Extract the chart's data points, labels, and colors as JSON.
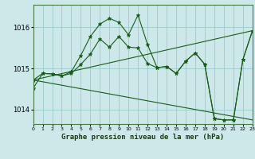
{
  "xlabel": "Graphe pression niveau de la mer (hPa)",
  "bg_color": "#cce8e8",
  "grid_color": "#99cccc",
  "line_color": "#1a5c1a",
  "marker_color": "#1a5c1a",
  "xlim": [
    0,
    23
  ],
  "ylim": [
    1013.65,
    1016.55
  ],
  "yticks": [
    1014,
    1015,
    1016
  ],
  "xticks": [
    0,
    1,
    2,
    3,
    4,
    5,
    6,
    7,
    8,
    9,
    10,
    11,
    12,
    13,
    14,
    15,
    16,
    17,
    18,
    19,
    20,
    21,
    22,
    23
  ],
  "series1_x": [
    0,
    1,
    2,
    3,
    4,
    5,
    6,
    7,
    8,
    9,
    10,
    11,
    12,
    13,
    14,
    15,
    16,
    17,
    18,
    19,
    20,
    21,
    22,
    23
  ],
  "series1_y": [
    1014.72,
    1014.88,
    1014.87,
    1014.82,
    1014.88,
    1015.1,
    1015.35,
    1015.72,
    1015.52,
    1015.78,
    1015.52,
    1015.5,
    1015.12,
    1015.02,
    1015.05,
    1014.88,
    1015.18,
    1015.38,
    1015.1,
    1013.78,
    1013.75,
    1013.75,
    1015.22,
    1015.92
  ],
  "series2_x": [
    0,
    1,
    2,
    3,
    4,
    5,
    6,
    7,
    8,
    9,
    10,
    11,
    12,
    13,
    14,
    15,
    16,
    17,
    18,
    19,
    20,
    21,
    22,
    23
  ],
  "series2_y": [
    1014.52,
    1014.88,
    1014.87,
    1014.82,
    1014.92,
    1015.32,
    1015.78,
    1016.08,
    1016.22,
    1016.12,
    1015.82,
    1016.3,
    1015.58,
    1015.02,
    1015.05,
    1014.88,
    1015.18,
    1015.38,
    1015.1,
    1013.78,
    1013.75,
    1013.75,
    1015.22,
    1015.92
  ],
  "series3_x": [
    0,
    23
  ],
  "series3_y": [
    1014.72,
    1013.75
  ],
  "series4_x": [
    0,
    23
  ],
  "series4_y": [
    1014.72,
    1015.92
  ]
}
